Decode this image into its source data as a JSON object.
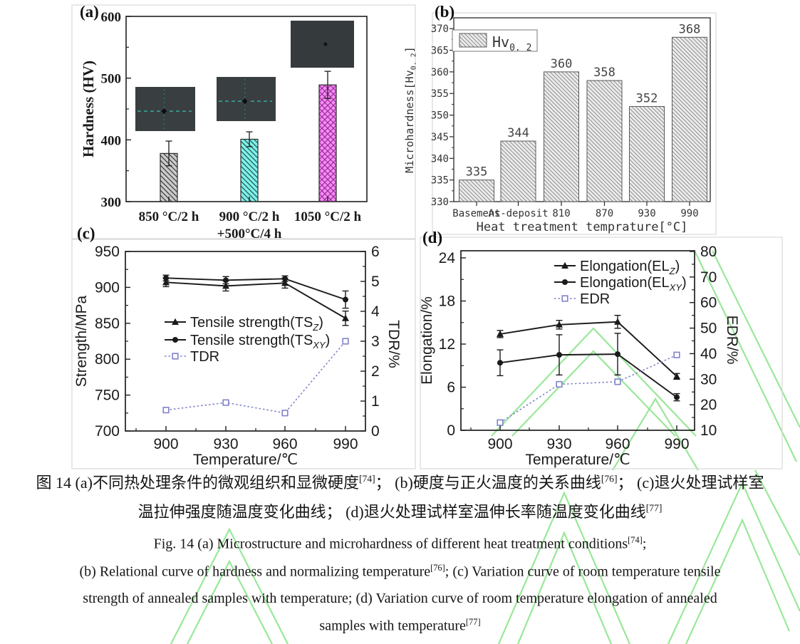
{
  "figure": {
    "panel_labels": {
      "a": "(a)",
      "b": "(b)",
      "c": "(c)",
      "d": "(d)"
    }
  },
  "colors": {
    "series_black": "#1a1a1a",
    "ratio_line_blue": "#8083cb",
    "watermark_green": "#8fe48f",
    "panel_border": "#d9d9d9",
    "bar_a_gray": "#cbcbcb",
    "bar_a_cyan": "#7ef2e6",
    "bar_a_magenta": "#f190ef",
    "bar_b_fill": "#ececec"
  },
  "caption": {
    "zh_line1_parts": [
      [
        "图 14 (a)不同热处理条件的微观组织和显微硬度",
        ""
      ],
      [
        "[74]",
        "sup"
      ],
      [
        "； (b)硬度与正火温度的关系曲线",
        ""
      ],
      [
        "[76]",
        "sup"
      ],
      [
        "； (c)退火处理试样室",
        ""
      ]
    ],
    "zh_line2_parts": [
      [
        "温拉伸强度随温度变化曲线； (d)退火处理试样室温伸长率随温度变化曲线",
        ""
      ],
      [
        "[77]",
        "sup"
      ]
    ],
    "en_line1_parts": [
      [
        "Fig. 14 (a) Microstructure and microhardness of different heat treatment conditions",
        ""
      ],
      [
        "[74]",
        "sup"
      ],
      [
        ";",
        ""
      ]
    ],
    "en_line2_parts": [
      [
        "(b) Relational curve of hardness and normalizing temperature",
        ""
      ],
      [
        "[76]",
        "sup"
      ],
      [
        "; (c) Variation curve of room temperature tensile",
        ""
      ]
    ],
    "en_line3_parts": [
      [
        "strength of annealed samples with temperature; (d) Variation curve of room temperature elongation of annealed",
        ""
      ]
    ],
    "en_line4_parts": [
      [
        "samples with temperature",
        ""
      ],
      [
        "[77]",
        "sup"
      ]
    ]
  },
  "chart_data": [
    {
      "panel": "a",
      "type": "bar",
      "ylabel": "Hardness (HV)",
      "ylim": [
        300,
        600
      ],
      "yticks": [
        300,
        400,
        500,
        600
      ],
      "yminors": [
        350,
        450,
        550
      ],
      "categories": [
        [
          "850 °C/2 h"
        ],
        [
          "900 °C/2 h",
          "+500°C/4 h"
        ],
        [
          "1050 °C/2 h"
        ]
      ],
      "values": [
        378,
        401,
        489
      ],
      "errors": [
        20,
        12,
        22
      ],
      "bar_styles": [
        {
          "fill": "#cbcbcb",
          "hatch": "diag",
          "line": "#3f3f3f"
        },
        {
          "fill": "#7ef2e6",
          "hatch": "diag",
          "line": "#22555e"
        },
        {
          "fill": "#f190ef",
          "hatch": "cross",
          "line": "#a128a1"
        }
      ],
      "insets": [
        "micrograph-850C",
        "micrograph-900C-500C",
        "micrograph-1050C"
      ]
    },
    {
      "panel": "b",
      "type": "bar",
      "legend_parts": [
        [
          "Hv",
          ""
        ],
        [
          "0. 2",
          "sub"
        ]
      ],
      "ylabel_parts": [
        [
          "Microhardness[Hv",
          ""
        ],
        [
          "0. 2",
          "sub"
        ],
        [
          "]",
          ""
        ]
      ],
      "xlabel": "Heat treatment temprature[°C]",
      "ylim": [
        330,
        372.5
      ],
      "yticks": [
        330,
        335,
        340,
        345,
        350,
        355,
        360,
        365,
        370
      ],
      "categories": [
        "Basement",
        "As-deposit",
        "810",
        "870",
        "930",
        "990"
      ],
      "values": [
        335,
        344,
        360,
        358,
        352,
        368
      ]
    },
    {
      "panel": "c",
      "type": "line",
      "x": [
        900,
        930,
        960,
        990
      ],
      "xlabel": "Temperature/℃",
      "left": {
        "label": "Strength/MPa",
        "lim": [
          700,
          950
        ],
        "ticks": [
          700,
          750,
          800,
          850,
          900,
          950
        ],
        "minors": [
          725,
          775,
          825,
          875,
          925
        ]
      },
      "right": {
        "label": "TDR/%",
        "lim": [
          0,
          6
        ],
        "ticks": [
          0,
          1,
          2,
          3,
          4,
          5,
          6
        ],
        "minors": [
          0.5,
          1.5,
          2.5,
          3.5,
          4.5,
          5.5
        ]
      },
      "series": [
        {
          "name_parts": [
            [
              "Tensile strength(TS",
              ""
            ],
            [
              "Z",
              "sub-i"
            ],
            [
              ")",
              ""
            ]
          ],
          "axis": "left",
          "marker": "triangle",
          "style": "solid",
          "color": "#1a1a1a",
          "values": [
            907,
            902,
            906,
            857
          ],
          "errors": [
            6,
            7,
            7,
            10
          ]
        },
        {
          "name_parts": [
            [
              "Tensile strength(TS",
              ""
            ],
            [
              "XY",
              "sub-i"
            ],
            [
              ")",
              ""
            ]
          ],
          "axis": "left",
          "marker": "circle",
          "style": "solid",
          "color": "#1a1a1a",
          "values": [
            913,
            910,
            912,
            883
          ],
          "errors": [
            4,
            5,
            4,
            12
          ]
        },
        {
          "name_parts": [
            [
              "TDR",
              ""
            ]
          ],
          "axis": "right",
          "marker": "square-open",
          "style": "dashed",
          "color": "#8083cb",
          "values": [
            0.7,
            0.95,
            0.6,
            3.0
          ]
        }
      ]
    },
    {
      "panel": "d",
      "type": "line",
      "x": [
        900,
        930,
        960,
        990
      ],
      "xlabel": "Temperature/℃",
      "left": {
        "label": "Elongation/%",
        "lim": [
          0,
          24
        ],
        "ticks": [
          0,
          6,
          12,
          18,
          24
        ],
        "minors": [
          3,
          9,
          15,
          21
        ]
      },
      "right": {
        "label": "EDR/%",
        "lim": [
          10,
          80
        ],
        "ticks": [
          10,
          20,
          30,
          40,
          50,
          60,
          70,
          80
        ],
        "minors": [
          15,
          25,
          35,
          45,
          55,
          65,
          75
        ]
      },
      "series": [
        {
          "name_parts": [
            [
              "Elongation(EL",
              ""
            ],
            [
              "Z",
              "sub-i"
            ],
            [
              ")",
              ""
            ]
          ],
          "axis": "left",
          "marker": "triangle",
          "style": "solid",
          "color": "#1a1a1a",
          "values": [
            13.4,
            14.7,
            15.1,
            7.5
          ],
          "errors": [
            0.5,
            0.6,
            0.9,
            0.4
          ]
        },
        {
          "name_parts": [
            [
              "Elongation(EL",
              ""
            ],
            [
              "XY",
              "sub-i"
            ],
            [
              ")",
              ""
            ]
          ],
          "axis": "left",
          "marker": "circle",
          "style": "solid",
          "color": "#1a1a1a",
          "values": [
            9.4,
            10.5,
            10.6,
            4.6
          ],
          "errors": [
            1.8,
            2.8,
            2.9,
            0.5
          ]
        },
        {
          "name_parts": [
            [
              "EDR",
              ""
            ]
          ],
          "axis": "right",
          "marker": "square-open",
          "style": "dashed",
          "color": "#8083cb",
          "values": [
            13,
            28,
            29,
            39.5
          ]
        }
      ]
    }
  ]
}
